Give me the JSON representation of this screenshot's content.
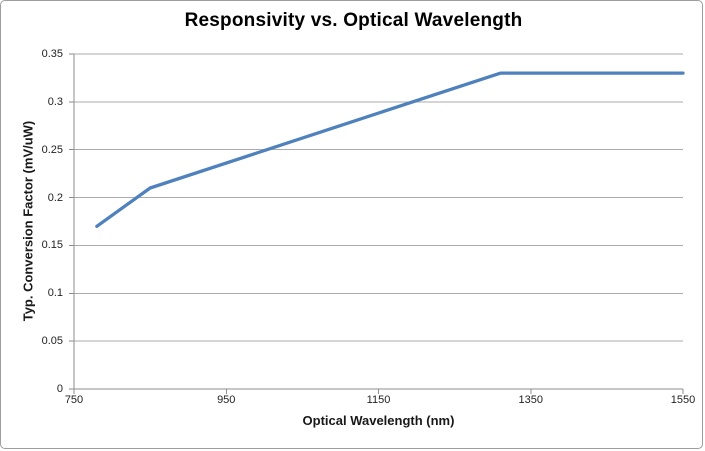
{
  "chart_data": {
    "type": "line",
    "title": "Responsivity vs. Optical Wavelength",
    "xlabel": "Optical Wavelength (nm)",
    "ylabel": "Typ. Conversion Factor (mV/uW)",
    "series": [
      {
        "name": "Typ. Conversion Factor",
        "x": [
          780,
          850,
          1310,
          1550
        ],
        "values": [
          0.17,
          0.21,
          0.33,
          0.33
        ]
      }
    ],
    "xlim": [
      750,
      1550
    ],
    "ylim": [
      0,
      0.35
    ],
    "x_tick_labels": [
      "750",
      "950",
      "1150",
      "1350",
      "1550"
    ],
    "y_tick_labels": [
      "0",
      "0.05",
      "0.1",
      "0.15",
      "0.2",
      "0.25",
      "0.3",
      "0.35"
    ],
    "grid": "horizontal-only",
    "legend_position": "none",
    "line_color": "#4F81BD",
    "gridline_color": "#ababab",
    "axis_color": "#8e8e8e",
    "tick_label_color": "#222222",
    "title_color": "#000000"
  }
}
